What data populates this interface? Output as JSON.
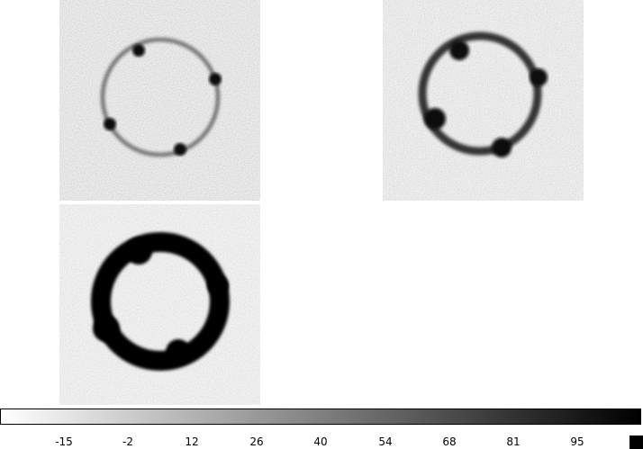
{
  "panels": [
    {
      "id": "panel-1",
      "ring": "thin ring with four compact dark knots"
    },
    {
      "id": "panel-2",
      "ring": "medium ring with four dark knots"
    },
    {
      "id": "panel-3",
      "ring": "thick dark ring with lumpy edges"
    }
  ],
  "colorbar": {
    "ticks": [
      "-15",
      "-2",
      "12",
      "26",
      "40",
      "54",
      "68",
      "81",
      "95"
    ],
    "cmap_start": "#ffffff",
    "cmap_end": "#000000",
    "background_gray": "#9c9c9c"
  }
}
